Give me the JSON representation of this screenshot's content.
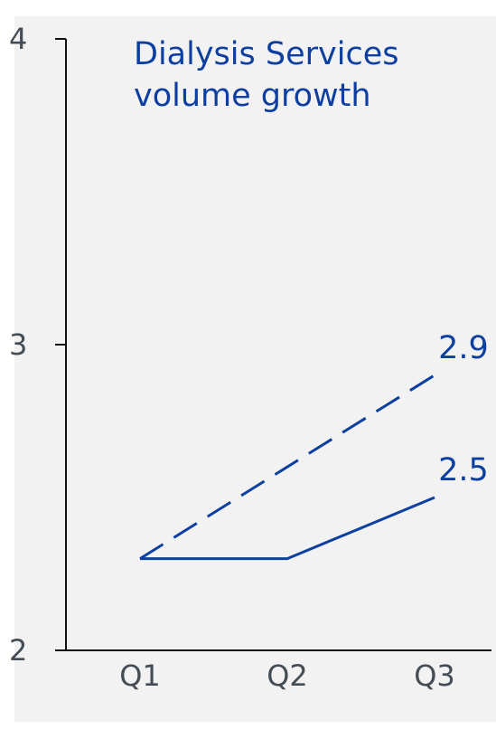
{
  "chart_data": {
    "type": "line",
    "title": [
      "Dialysis Services",
      "volume growth"
    ],
    "categories": [
      "Q1",
      "Q2",
      "Q3"
    ],
    "ylim": [
      2,
      4
    ],
    "yticks": [
      2,
      3,
      4
    ],
    "grid": false,
    "series": [
      {
        "values": [
          2.3,
          2.6,
          2.9
        ],
        "style": "dashed",
        "end_label": "2.9"
      },
      {
        "values": [
          2.3,
          2.3,
          2.5
        ],
        "style": "solid",
        "end_label": "2.5"
      }
    ],
    "colors": {
      "series": "#0d3fa0",
      "axis": "#111111",
      "tick_text": "#444c55",
      "panel": "#f2f2f2"
    }
  }
}
